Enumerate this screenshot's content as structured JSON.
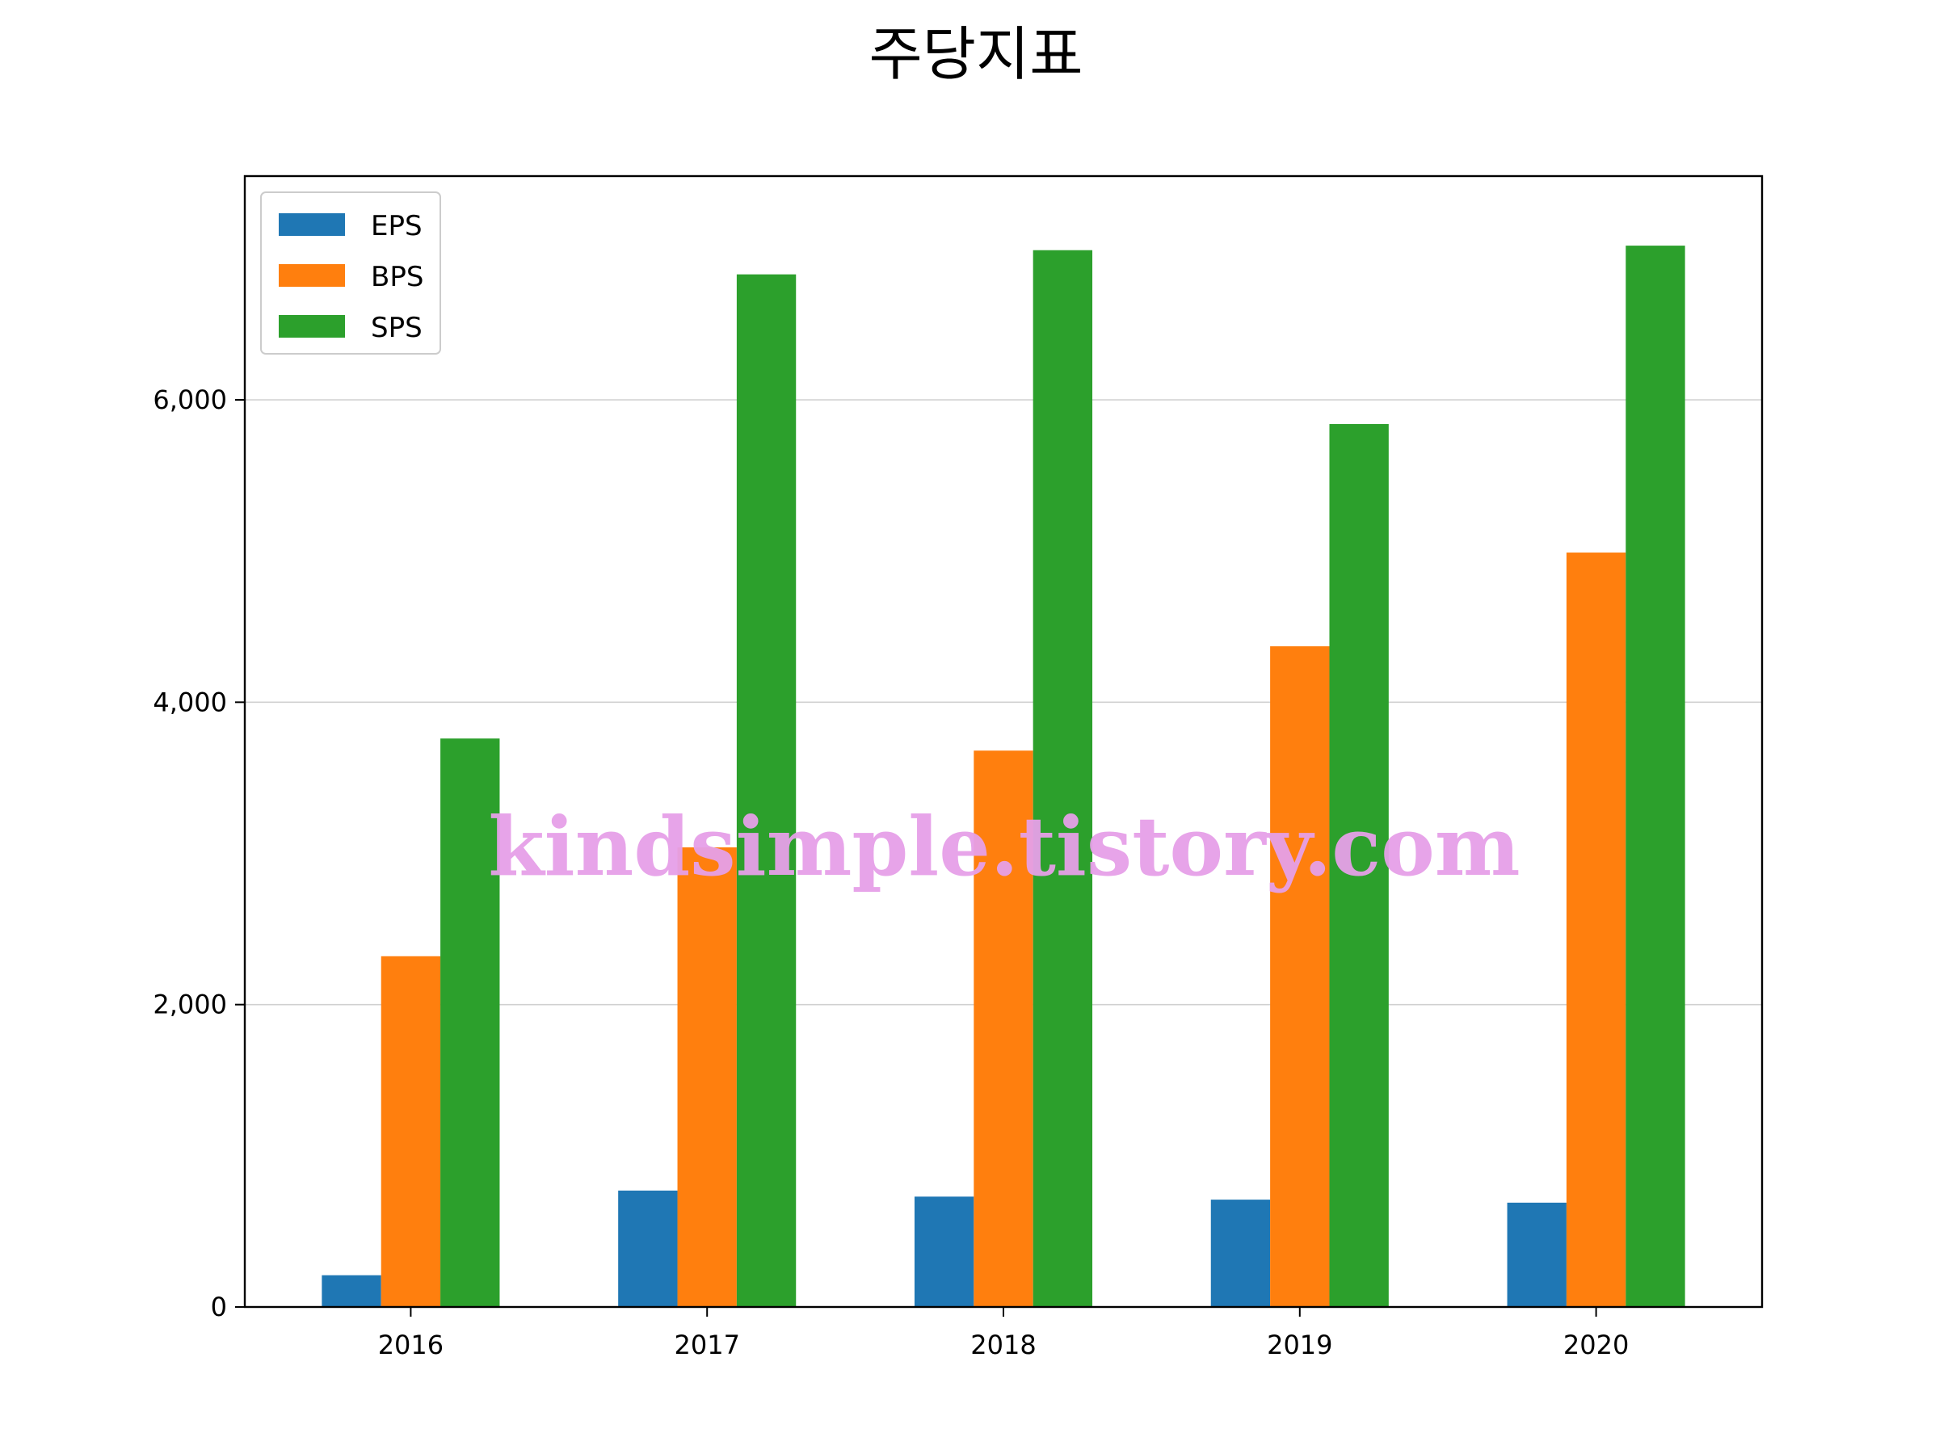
{
  "chart_data": {
    "type": "bar",
    "title": "주당지표",
    "categories": [
      "2016",
      "2017",
      "2018",
      "2019",
      "2020"
    ],
    "series": [
      {
        "name": "EPS",
        "color": "#1f77b4",
        "values": [
          210,
          770,
          730,
          710,
          690
        ]
      },
      {
        "name": "BPS",
        "color": "#ff7f0e",
        "values": [
          2320,
          3040,
          3680,
          4370,
          4990
        ]
      },
      {
        "name": "SPS",
        "color": "#2ca02c",
        "values": [
          3760,
          6830,
          6990,
          5840,
          7020
        ]
      }
    ],
    "ylim": [
      0,
      7480
    ],
    "yticks": [
      0,
      2000,
      4000,
      6000
    ],
    "ytick_labels": [
      "0",
      "2,000",
      "4,000",
      "6,000"
    ],
    "xlabel": "",
    "ylabel": "",
    "grid": "y-axis horizontal lines",
    "legend_position": "top-left"
  },
  "watermark": "kindsimple.tistory.com"
}
